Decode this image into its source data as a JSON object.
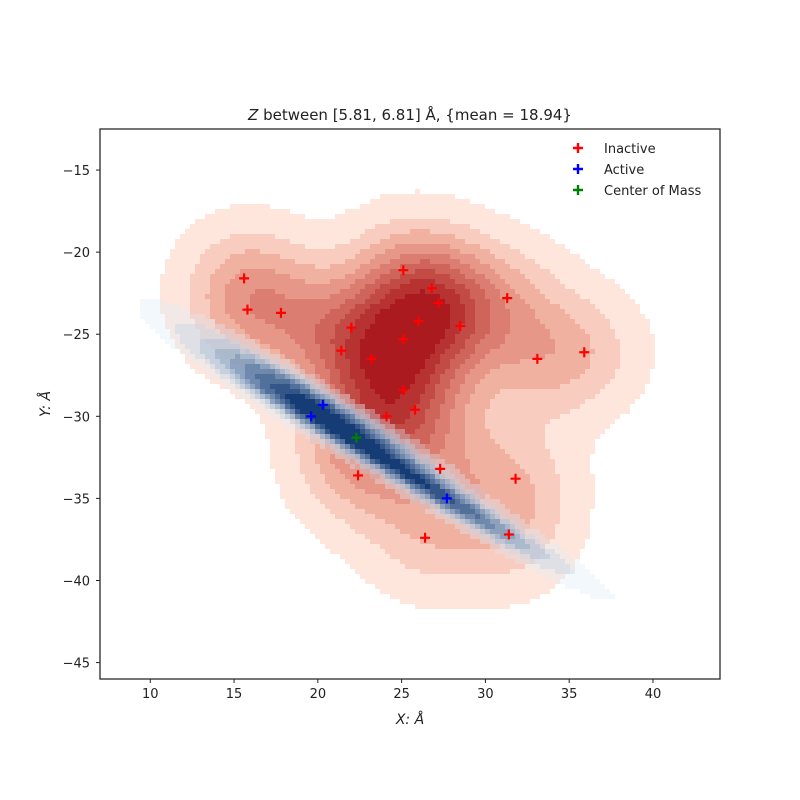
{
  "chart_data": {
    "type": "scatter",
    "title_italic": "Z",
    "title_rest": " between [5.81, 6.81] Å, {mean = 18.94}",
    "xlabel": "X: Å",
    "ylabel": "Y: Å",
    "xlim": [
      7,
      44
    ],
    "ylim": [
      -46,
      -12.5
    ],
    "xticks": [
      10,
      15,
      20,
      25,
      30,
      35,
      40
    ],
    "yticks": [
      -15,
      -20,
      -25,
      -30,
      -35,
      -40,
      -45
    ],
    "grid": false,
    "legend_position": "top-right",
    "series": [
      {
        "name": "Inactive",
        "color": "#ff0000",
        "marker": "plus",
        "points": [
          [
            15.6,
            -21.6
          ],
          [
            15.8,
            -23.5
          ],
          [
            17.8,
            -23.7
          ],
          [
            22.0,
            -24.6
          ],
          [
            21.4,
            -26.0
          ],
          [
            23.2,
            -26.5
          ],
          [
            25.1,
            -21.1
          ],
          [
            26.8,
            -22.2
          ],
          [
            27.2,
            -23.1
          ],
          [
            26.0,
            -24.2
          ],
          [
            25.1,
            -25.3
          ],
          [
            28.5,
            -24.5
          ],
          [
            31.3,
            -22.8
          ],
          [
            33.1,
            -26.5
          ],
          [
            35.9,
            -26.1
          ],
          [
            25.1,
            -28.4
          ],
          [
            24.1,
            -30.0
          ],
          [
            25.8,
            -29.6
          ],
          [
            27.3,
            -33.2
          ],
          [
            22.4,
            -33.6
          ],
          [
            31.8,
            -33.8
          ],
          [
            26.4,
            -37.4
          ],
          [
            31.4,
            -37.2
          ]
        ]
      },
      {
        "name": "Active",
        "color": "#0000ff",
        "marker": "plus",
        "points": [
          [
            20.3,
            -29.3
          ],
          [
            19.6,
            -30.0
          ],
          [
            27.7,
            -35.0
          ]
        ]
      },
      {
        "name": "Center of Mass",
        "color": "#008000",
        "marker": "plus",
        "points": [
          [
            22.3,
            -31.3
          ]
        ]
      }
    ]
  }
}
